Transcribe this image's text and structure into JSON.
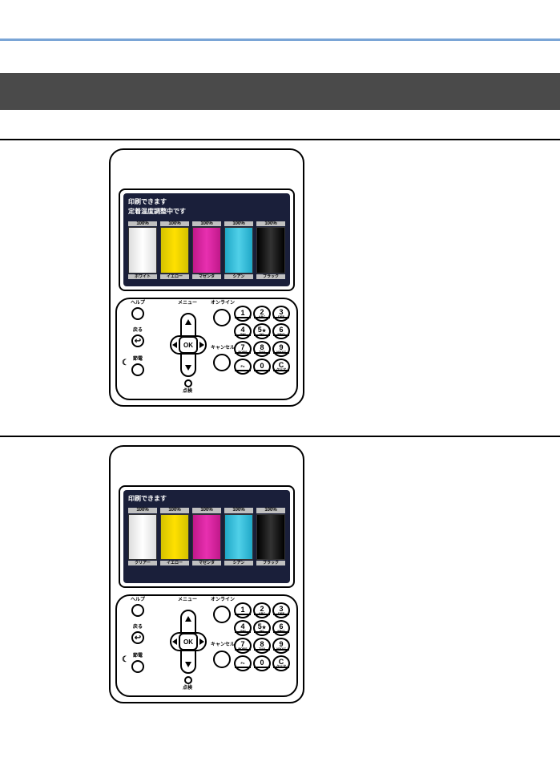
{
  "colors": {
    "blue_rule": "#7aa5d6",
    "dark_band": "#4a4a4a",
    "lcd_bg": "#1a1f3a"
  },
  "keypad": [
    {
      "num": "1",
      "sub": ""
    },
    {
      "num": "2",
      "sub": "ABC"
    },
    {
      "num": "3",
      "sub": "DEF"
    },
    {
      "num": "4",
      "sub": "GHI"
    },
    {
      "num": "5",
      "sub": "JKL",
      "star": true
    },
    {
      "num": "6",
      "sub": "MNO"
    },
    {
      "num": "7",
      "sub": "PQRS"
    },
    {
      "num": "8",
      "sub": "TUV"
    },
    {
      "num": "9",
      "sub": "WXYZ"
    },
    {
      "num": "",
      "sub": "Fn",
      "bottom": true
    },
    {
      "num": "0",
      "sub": ""
    },
    {
      "num": "C",
      "sub": "クリア",
      "bottom": true
    }
  ],
  "btn_labels": {
    "help": "ヘルプ",
    "menu": "メニュー",
    "online": "オンライン",
    "back": "戻る",
    "cancel": "キャンセル",
    "power": "節電",
    "check": "点検",
    "ok": "OK",
    "back_icon": "↩",
    "moon_icon": "☾"
  },
  "panel1": {
    "status_line1": "印刷できます",
    "status_line2": "定着温度調整中です",
    "toners": [
      {
        "pct": "100%",
        "label": "ホワイト",
        "cls": "white"
      },
      {
        "pct": "100%",
        "label": "イエロー",
        "cls": "yellow"
      },
      {
        "pct": "100%",
        "label": "マゼンタ",
        "cls": "magenta"
      },
      {
        "pct": "100%",
        "label": "シアン",
        "cls": "cyan"
      },
      {
        "pct": "100%",
        "label": "ブラック",
        "cls": "black"
      }
    ]
  },
  "panel2": {
    "status_line1": "印刷できます",
    "status_line2": "",
    "toners": [
      {
        "pct": "100%",
        "label": "クリアー",
        "cls": "white"
      },
      {
        "pct": "100%",
        "label": "イエロー",
        "cls": "yellow"
      },
      {
        "pct": "100%",
        "label": "マゼンタ",
        "cls": "magenta"
      },
      {
        "pct": "100%",
        "label": "シアン",
        "cls": "cyan"
      },
      {
        "pct": "100%",
        "label": "ブラック",
        "cls": "black"
      }
    ]
  }
}
